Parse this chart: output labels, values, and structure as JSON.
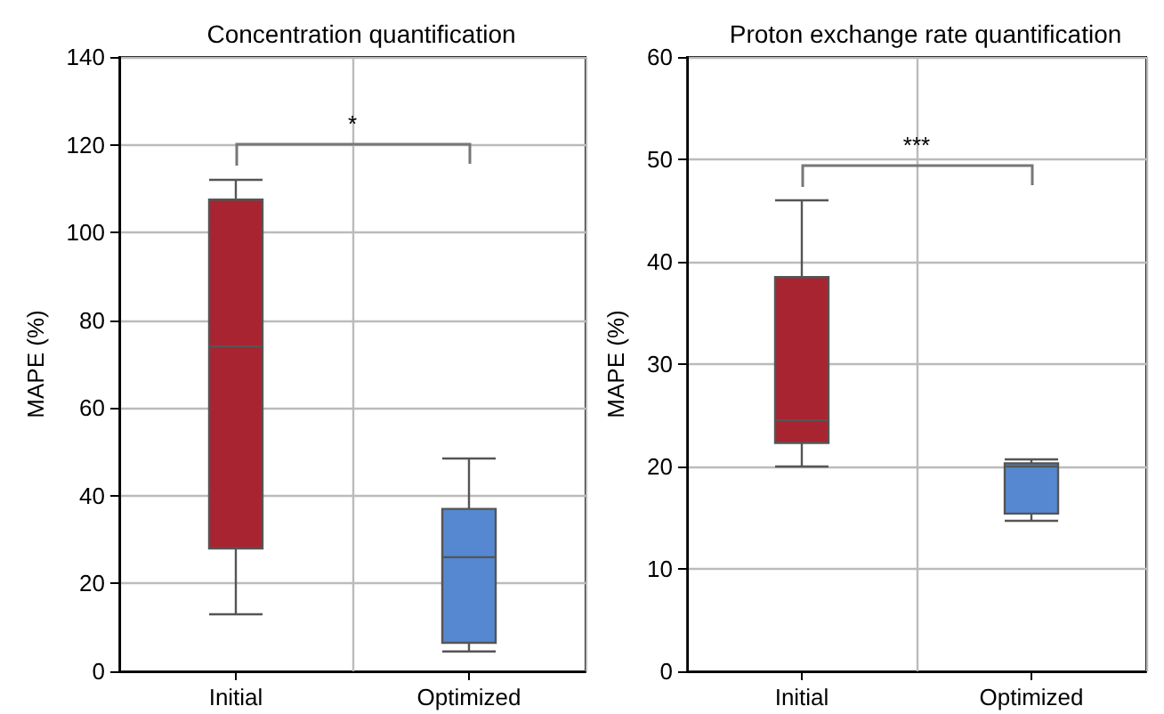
{
  "chart_data": [
    {
      "type": "box",
      "title": "Concentration quantification",
      "ylabel": "MAPE (%)",
      "categories": [
        "Initial",
        "Optimized"
      ],
      "boxes": [
        {
          "low": 13,
          "q1": 28,
          "median": 74,
          "q3": 107.5,
          "high": 112
        },
        {
          "low": 4.5,
          "q1": 6.5,
          "median": 26,
          "q3": 37,
          "high": 48.5
        }
      ],
      "colors": [
        "#a82431",
        "#5588d0"
      ],
      "ylim": [
        0,
        140
      ],
      "yticks": [
        0,
        20,
        40,
        60,
        80,
        100,
        120,
        140
      ],
      "grid": true,
      "annotations": [
        "*"
      ]
    },
    {
      "type": "box",
      "title": "Proton exchange rate quantification",
      "ylabel": "MAPE (%)",
      "categories": [
        "Initial",
        "Optimized"
      ],
      "boxes": [
        {
          "low": 20,
          "q1": 22.3,
          "median": 24.5,
          "q3": 38.5,
          "high": 46
        },
        {
          "low": 14.7,
          "q1": 15.4,
          "median": 20,
          "q3": 20.3,
          "high": 20.7
        }
      ],
      "colors": [
        "#a82431",
        "#5588d0"
      ],
      "ylim": [
        0,
        60
      ],
      "yticks": [
        0,
        10,
        20,
        30,
        40,
        50,
        60
      ],
      "grid": true,
      "annotations": [
        "***"
      ]
    }
  ]
}
